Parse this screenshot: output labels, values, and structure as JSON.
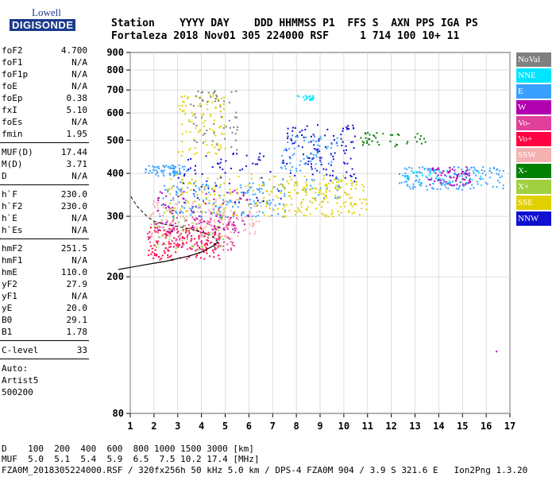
{
  "logo": {
    "top": "Lowell",
    "bottom": "DIGISONDE"
  },
  "header": {
    "line1": "Station    YYYY DAY    DDD HHMMSS P1  FFS S  AXN PPS IGA PS",
    "line2": "Fortaleza 2018 Nov01 305 224000 RSF     1 714 100 10+ 11"
  },
  "params": {
    "group1": [
      {
        "name": "foF2",
        "value": "4.700"
      },
      {
        "name": "foF1",
        "value": "N/A"
      },
      {
        "name": "foF1p",
        "value": "N/A"
      },
      {
        "name": "foE",
        "value": "N/A"
      },
      {
        "name": "foEp",
        "value": "0.38"
      },
      {
        "name": "fxI",
        "value": "5.10"
      },
      {
        "name": "foEs",
        "value": "N/A"
      },
      {
        "name": "fmin",
        "value": "1.95"
      }
    ],
    "group2": [
      {
        "name": "MUF(D)",
        "value": "17.44"
      },
      {
        "name": "M(D)",
        "value": "3.71"
      },
      {
        "name": "D",
        "value": "N/A"
      }
    ],
    "group3": [
      {
        "name": "h`F",
        "value": "230.0"
      },
      {
        "name": "h`F2",
        "value": "230.0"
      },
      {
        "name": "h`E",
        "value": "N/A"
      },
      {
        "name": "h`Es",
        "value": "N/A"
      }
    ],
    "group4": [
      {
        "name": "hmF2",
        "value": "251.5"
      },
      {
        "name": "hmF1",
        "value": "N/A"
      },
      {
        "name": "hmE",
        "value": "110.0"
      },
      {
        "name": "yF2",
        "value": "27.9"
      },
      {
        "name": "yF1",
        "value": "N/A"
      },
      {
        "name": "yE",
        "value": "20.0"
      },
      {
        "name": "B0",
        "value": "29.1"
      },
      {
        "name": "B1",
        "value": "1.78"
      }
    ],
    "group5": [
      {
        "name": "C-level",
        "value": "33"
      }
    ],
    "auto_label": "Auto:",
    "artist": "Artist5",
    "version_code": "500200"
  },
  "footer": {
    "line1": "D    100  200  400  600  800 1000 1500 3000 [km]",
    "line2": "MUF  5.0  5.1  5.4  5.9  6.5  7.5 10.2 17.4 [MHz]",
    "line3": "FZA0M_2018305224000.RSF / 320fx256h 50 kHz 5.0 km / DPS-4 FZA0M 904 / 3.9 S 321.6 E   Ion2Png 1.3.20"
  },
  "legend": [
    {
      "label": "NoVal",
      "color": "#808080"
    },
    {
      "label": "NNE",
      "color": "#00e5ff"
    },
    {
      "label": "E",
      "color": "#3aa0ff"
    },
    {
      "label": "W",
      "color": "#b000b0"
    },
    {
      "label": "Vo-",
      "color": "#e0409a"
    },
    {
      "label": "Vo+",
      "color": "#ff0040"
    },
    {
      "label": "SSW",
      "color": "#f5b0b0"
    },
    {
      "label": "X-",
      "color": "#008000"
    },
    {
      "label": "X+",
      "color": "#a0d040"
    },
    {
      "label": "SSE",
      "color": "#e0d000"
    },
    {
      "label": "NNW",
      "color": "#1010d0"
    }
  ],
  "chart_data": {
    "type": "scatter",
    "xlabel": "",
    "ylabel": "",
    "xlim": [
      1,
      17
    ],
    "ylim": [
      80,
      900
    ],
    "x_ticks": [
      1,
      2,
      3,
      4,
      5,
      6,
      7,
      8,
      9,
      10,
      11,
      12,
      13,
      14,
      15,
      16,
      17
    ],
    "y_ticks": [
      80,
      200,
      300,
      400,
      500,
      600,
      700,
      800,
      900
    ],
    "y_scale": "log",
    "grid": true,
    "clusters": [
      {
        "series": "E",
        "f0": 1.6,
        "f1": 3.4,
        "h0": 395,
        "h1": 425,
        "n": 70
      },
      {
        "series": "Vo+",
        "f0": 1.7,
        "f1": 4.8,
        "h0": 225,
        "h1": 280,
        "n": 160
      },
      {
        "series": "Vo-",
        "f0": 1.7,
        "f1": 5.5,
        "h0": 240,
        "h1": 300,
        "n": 140
      },
      {
        "series": "SSW",
        "f0": 1.8,
        "f1": 6.5,
        "h0": 260,
        "h1": 340,
        "n": 160
      },
      {
        "series": "X+",
        "f0": 1.9,
        "f1": 5.0,
        "h0": 240,
        "h1": 320,
        "n": 60
      },
      {
        "series": "W",
        "f0": 2.0,
        "f1": 6.0,
        "h0": 270,
        "h1": 360,
        "n": 90
      },
      {
        "series": "E",
        "f0": 2.2,
        "f1": 7.5,
        "h0": 300,
        "h1": 380,
        "n": 160
      },
      {
        "series": "SSE",
        "f0": 2.5,
        "f1": 10.5,
        "h0": 300,
        "h1": 400,
        "n": 170
      },
      {
        "series": "NNW",
        "f0": 3.0,
        "f1": 7.5,
        "h0": 330,
        "h1": 460,
        "n": 60
      },
      {
        "series": "SSE",
        "f0": 3.0,
        "f1": 5.0,
        "h0": 450,
        "h1": 680,
        "n": 90
      },
      {
        "series": "NoVal",
        "f0": 3.5,
        "f1": 5.5,
        "h0": 470,
        "h1": 700,
        "n": 60
      },
      {
        "series": "NNE",
        "f0": 8.0,
        "f1": 8.7,
        "h0": 655,
        "h1": 680,
        "n": 22
      },
      {
        "series": "NNW",
        "f0": 7.5,
        "f1": 10.5,
        "h0": 380,
        "h1": 560,
        "n": 110
      },
      {
        "series": "E",
        "f0": 7.3,
        "f1": 9.8,
        "h0": 340,
        "h1": 520,
        "n": 90
      },
      {
        "series": "SSE",
        "f0": 7.3,
        "f1": 11.0,
        "h0": 300,
        "h1": 380,
        "n": 110
      },
      {
        "series": "X-",
        "f0": 10.5,
        "f1": 13.5,
        "h0": 480,
        "h1": 530,
        "n": 40
      },
      {
        "series": "E",
        "f0": 12.3,
        "f1": 16.7,
        "h0": 360,
        "h1": 420,
        "n": 160
      },
      {
        "series": "W",
        "f0": 13.5,
        "f1": 15.3,
        "h0": 370,
        "h1": 420,
        "n": 70
      },
      {
        "series": "NNE",
        "f0": 12.5,
        "f1": 16.0,
        "h0": 370,
        "h1": 410,
        "n": 40
      },
      {
        "series": "W",
        "f0": 16.3,
        "f1": 16.5,
        "h0": 120,
        "h1": 124,
        "n": 1
      }
    ],
    "profile": {
      "f": [
        0.5,
        1.0,
        1.5,
        2.0,
        2.5,
        3.0,
        3.5,
        4.0,
        4.3,
        4.5,
        4.6,
        4.7
      ],
      "h_lower": [
        210,
        213,
        216,
        219,
        222,
        226,
        230,
        236,
        242,
        246,
        250,
        251.5
      ],
      "f_upper": [
        4.7,
        4.5,
        4.0,
        3.5,
        3.0,
        2.5,
        2.0,
        1.7,
        1.3,
        1.0
      ],
      "h_upper": [
        251.5,
        262,
        270,
        276,
        280,
        284,
        290,
        300,
        320,
        345
      ]
    }
  }
}
